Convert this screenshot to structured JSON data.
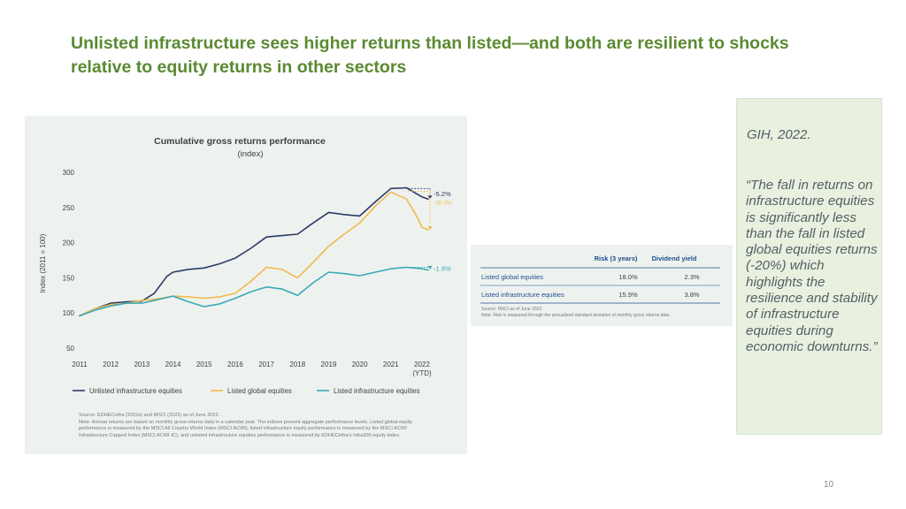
{
  "slide": {
    "title": "Unlisted infrastructure sees higher returns than listed—and both are resilient to shocks relative to equity returns in other sectors",
    "page_number": "10"
  },
  "chart_data": {
    "type": "line",
    "title": "Cumulative gross returns performance",
    "subtitle": "(index)",
    "xlabel": "",
    "ylabel": "Index (2011 = 100)",
    "ylim": [
      50,
      300
    ],
    "yticks": [
      50,
      100,
      150,
      200,
      250,
      300
    ],
    "xticks": [
      "2011",
      "2012",
      "2013",
      "2014",
      "2015",
      "2016",
      "2017",
      "2018",
      "2019",
      "2020",
      "2021",
      "2022"
    ],
    "xtick_sub": "(YTD)",
    "grid": false,
    "legend_position": "bottom",
    "series": [
      {
        "name": "Unlisted infrastructure equities",
        "color": "#2b3a67",
        "points": [
          [
            2011,
            96
          ],
          [
            2011.5,
            106
          ],
          [
            2012,
            114
          ],
          [
            2012.5,
            116
          ],
          [
            2013,
            117
          ],
          [
            2013.4,
            128
          ],
          [
            2013.8,
            152
          ],
          [
            2014,
            158
          ],
          [
            2014.5,
            162
          ],
          [
            2015,
            164
          ],
          [
            2015.5,
            170
          ],
          [
            2016,
            178
          ],
          [
            2016.5,
            192
          ],
          [
            2017,
            208
          ],
          [
            2017.5,
            210
          ],
          [
            2018,
            212
          ],
          [
            2018.5,
            228
          ],
          [
            2019,
            243
          ],
          [
            2019.5,
            240
          ],
          [
            2020,
            238
          ],
          [
            2020.5,
            258
          ],
          [
            2021,
            277
          ],
          [
            2021.5,
            278
          ],
          [
            2022,
            265
          ],
          [
            2022.2,
            262
          ]
        ]
      },
      {
        "name": "Listed global equities",
        "color": "#f2b84b",
        "points": [
          [
            2011,
            96
          ],
          [
            2011.5,
            106
          ],
          [
            2012,
            112
          ],
          [
            2012.5,
            114
          ],
          [
            2013,
            118
          ],
          [
            2013.5,
            120
          ],
          [
            2014,
            124
          ],
          [
            2014.5,
            123
          ],
          [
            2015,
            121
          ],
          [
            2015.5,
            123
          ],
          [
            2016,
            128
          ],
          [
            2016.5,
            145
          ],
          [
            2017,
            165
          ],
          [
            2017.5,
            162
          ],
          [
            2018,
            150
          ],
          [
            2018.5,
            172
          ],
          [
            2019,
            195
          ],
          [
            2019.5,
            212
          ],
          [
            2020,
            228
          ],
          [
            2020.5,
            252
          ],
          [
            2021,
            272
          ],
          [
            2021.5,
            262
          ],
          [
            2021.8,
            240
          ],
          [
            2022,
            222
          ],
          [
            2022.2,
            218
          ]
        ]
      },
      {
        "name": "Listed infrastructure equities",
        "color": "#38a9b5",
        "points": [
          [
            2011,
            96
          ],
          [
            2011.5,
            104
          ],
          [
            2012,
            110
          ],
          [
            2012.5,
            114
          ],
          [
            2013,
            114
          ],
          [
            2013.5,
            119
          ],
          [
            2014,
            124
          ],
          [
            2014.5,
            116
          ],
          [
            2015,
            109
          ],
          [
            2015.5,
            113
          ],
          [
            2016,
            121
          ],
          [
            2016.5,
            130
          ],
          [
            2017,
            137
          ],
          [
            2017.5,
            134
          ],
          [
            2018,
            125
          ],
          [
            2018.5,
            143
          ],
          [
            2019,
            158
          ],
          [
            2019.5,
            156
          ],
          [
            2020,
            153
          ],
          [
            2020.5,
            158
          ],
          [
            2021,
            163
          ],
          [
            2021.5,
            165
          ],
          [
            2022,
            163
          ],
          [
            2022.2,
            161
          ]
        ]
      }
    ],
    "annotations": [
      {
        "label": "-5.2%",
        "color": "#2b3a67",
        "x": 2022.2,
        "from": 277,
        "to": 262
      },
      {
        "label": "-20.0%",
        "color": "#f2b84b",
        "x": 2022.2,
        "from": 273,
        "to": 218
      },
      {
        "label": "-1.9%",
        "color": "#38a9b5",
        "x": 2022.2,
        "from": 165,
        "to": 162
      }
    ],
    "notes": [
      "Source: EDHECinfra (2022a) and MSCI (2022) as of June 2022.",
      "Note: Annual returns are based on monthly gross returns data in a calendar year. The indices present aggregate performance levels. Listed global equity performance is measured by the MSCI All Country World Index (MSCI ACWI), listed infrastructure equity performance is measured by the MSCI ACWI Infrastructure Capped Index (MSCI ACWI-IC), and unlisted infrastructure equities performance is measured by EDHECinfra's Infra300 equity index."
    ]
  },
  "risk_table": {
    "headers": [
      "",
      "Risk (3 years)",
      "Dividend yield"
    ],
    "rows": [
      [
        "Listed global equities",
        "18.0%",
        "2.3%"
      ],
      [
        "Listed infrastructure equities",
        "15.9%",
        "3.8%"
      ]
    ],
    "source": "Source: MSCI as of June 2022.",
    "note": "Note: Risk is measured through the annualized standard deviation of monthly gross returns data."
  },
  "quote": {
    "citation": "GIH, 2022.",
    "text": "“The fall in returns on infrastructure equities is significantly less than the fall in listed global equities returns (-20%) which highlights the resilience and stability of infrastructure equities during economic downturns.”"
  },
  "colors": {
    "title_green": "#5b8a32",
    "panel_bg": "#eef2ef",
    "quote_bg": "#e8f0e0",
    "header_blue": "#1e4f8c"
  }
}
